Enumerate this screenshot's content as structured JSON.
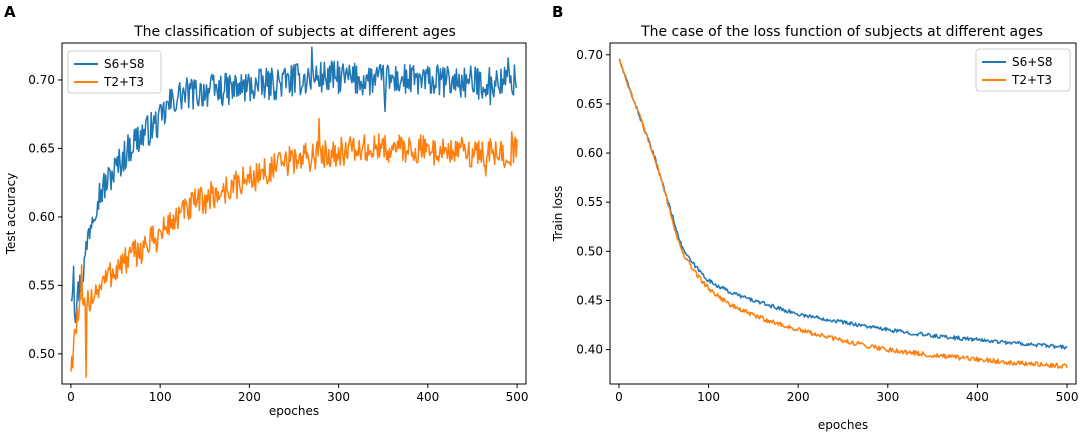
{
  "colors": {
    "series1": "#1f77b4",
    "series2": "#ff7f0e",
    "axis": "#000000",
    "legend_border": "#cccccc"
  },
  "chart_data": [
    {
      "panel": "A",
      "type": "line",
      "title": "The classification of subjects at different ages",
      "xlabel": "epoches",
      "ylabel": "Test accuracy",
      "xlim": [
        -10,
        510
      ],
      "ylim": [
        0.478,
        0.727
      ],
      "xticks": [
        0,
        100,
        200,
        300,
        400,
        500
      ],
      "xtick_labels": [
        "0",
        "100",
        "200",
        "300",
        "400",
        "500"
      ],
      "yticks": [
        0.5,
        0.55,
        0.6,
        0.65,
        0.7
      ],
      "ytick_labels": [
        "0.50",
        "0.55",
        "0.60",
        "0.65",
        "0.70"
      ],
      "legend_position": "upper-left",
      "grid": false,
      "series": [
        {
          "name": "S6+S8",
          "color": "#1f77b4",
          "x": [
            0,
            2,
            5,
            10,
            15,
            20,
            25,
            30,
            40,
            50,
            60,
            70,
            80,
            90,
            100,
            110,
            120,
            130,
            140,
            150,
            175,
            200,
            225,
            250,
            275,
            300,
            325,
            350,
            375,
            400,
            425,
            450,
            475,
            500
          ],
          "y": [
            0.545,
            0.553,
            0.535,
            0.55,
            0.565,
            0.59,
            0.605,
            0.615,
            0.625,
            0.635,
            0.645,
            0.655,
            0.66,
            0.665,
            0.67,
            0.682,
            0.688,
            0.69,
            0.69,
            0.692,
            0.693,
            0.695,
            0.697,
            0.7,
            0.702,
            0.702,
            0.7,
            0.7,
            0.7,
            0.699,
            0.699,
            0.698,
            0.698,
            0.7
          ],
          "noise_amplitude": 0.012,
          "dips": [
            {
              "x": 5,
              "y": 0.523
            },
            {
              "x": 3,
              "y": 0.564
            },
            {
              "x": 270,
              "y": 0.724
            },
            {
              "x": 352,
              "y": 0.677
            },
            {
              "x": 470,
              "y": 0.682
            },
            {
              "x": 490,
              "y": 0.716
            }
          ]
        },
        {
          "name": "T2+T3",
          "color": "#ff7f0e",
          "x": [
            0,
            5,
            10,
            15,
            20,
            30,
            40,
            50,
            60,
            70,
            80,
            90,
            100,
            110,
            120,
            130,
            140,
            150,
            175,
            200,
            225,
            250,
            275,
            300,
            325,
            350,
            375,
            400,
            425,
            450,
            475,
            500
          ],
          "y": [
            0.487,
            0.52,
            0.53,
            0.53,
            0.54,
            0.548,
            0.555,
            0.562,
            0.567,
            0.572,
            0.577,
            0.582,
            0.587,
            0.595,
            0.6,
            0.605,
            0.61,
            0.613,
            0.62,
            0.628,
            0.635,
            0.642,
            0.645,
            0.648,
            0.649,
            0.65,
            0.65,
            0.649,
            0.648,
            0.647,
            0.646,
            0.648
          ],
          "noise_amplitude": 0.011,
          "dips": [
            {
              "x": 0,
              "y": 0.487
            },
            {
              "x": 17,
              "y": 0.483
            },
            {
              "x": 12,
              "y": 0.565
            },
            {
              "x": 278,
              "y": 0.672
            },
            {
              "x": 465,
              "y": 0.63
            },
            {
              "x": 494,
              "y": 0.662
            }
          ]
        }
      ]
    },
    {
      "panel": "B",
      "type": "line",
      "title": "The case of the loss function of subjects at different ages",
      "xlabel": "epoches",
      "ylabel": "Train loss",
      "xlim": [
        -10,
        510
      ],
      "ylim": [
        0.365,
        0.712
      ],
      "xticks": [
        0,
        100,
        200,
        300,
        400,
        500
      ],
      "xtick_labels": [
        "0",
        "100",
        "200",
        "300",
        "400",
        "500"
      ],
      "yticks": [
        0.4,
        0.45,
        0.5,
        0.55,
        0.6,
        0.65,
        0.7
      ],
      "ytick_labels": [
        "0.40",
        "0.45",
        "0.50",
        "0.55",
        "0.60",
        "0.65",
        "0.70"
      ],
      "legend_position": "upper-right",
      "grid": false,
      "series": [
        {
          "name": "S6+S8",
          "color": "#1f77b4",
          "x": [
            0,
            10,
            20,
            30,
            40,
            50,
            60,
            70,
            80,
            90,
            100,
            125,
            150,
            175,
            200,
            250,
            300,
            350,
            400,
            450,
            500
          ],
          "y": [
            0.696,
            0.67,
            0.645,
            0.62,
            0.595,
            0.565,
            0.535,
            0.505,
            0.49,
            0.48,
            0.47,
            0.458,
            0.45,
            0.443,
            0.436,
            0.428,
            0.42,
            0.414,
            0.41,
            0.406,
            0.402
          ],
          "noise_amplitude": 0.002,
          "dips": []
        },
        {
          "name": "T2+T3",
          "color": "#ff7f0e",
          "x": [
            0,
            10,
            20,
            30,
            40,
            50,
            60,
            70,
            80,
            90,
            100,
            125,
            150,
            175,
            200,
            250,
            300,
            350,
            400,
            450,
            500
          ],
          "y": [
            0.697,
            0.67,
            0.645,
            0.62,
            0.595,
            0.565,
            0.53,
            0.5,
            0.485,
            0.473,
            0.462,
            0.445,
            0.435,
            0.427,
            0.42,
            0.409,
            0.4,
            0.394,
            0.39,
            0.386,
            0.383
          ],
          "noise_amplitude": 0.0025,
          "dips": []
        }
      ]
    }
  ]
}
